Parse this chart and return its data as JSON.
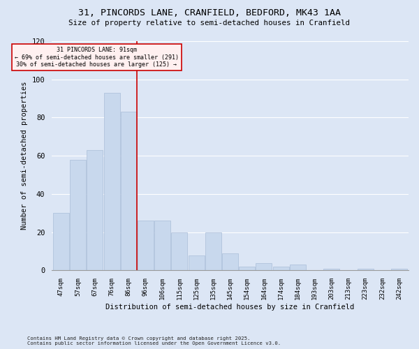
{
  "title_line1": "31, PINCORDS LANE, CRANFIELD, BEDFORD, MK43 1AA",
  "title_line2": "Size of property relative to semi-detached houses in Cranfield",
  "xlabel": "Distribution of semi-detached houses by size in Cranfield",
  "ylabel": "Number of semi-detached properties",
  "footnote1": "Contains HM Land Registry data © Crown copyright and database right 2025.",
  "footnote2": "Contains public sector information licensed under the Open Government Licence v3.0.",
  "categories": [
    "47sqm",
    "57sqm",
    "67sqm",
    "76sqm",
    "86sqm",
    "96sqm",
    "106sqm",
    "115sqm",
    "125sqm",
    "135sqm",
    "145sqm",
    "154sqm",
    "164sqm",
    "174sqm",
    "184sqm",
    "193sqm",
    "203sqm",
    "213sqm",
    "223sqm",
    "232sqm",
    "242sqm"
  ],
  "values": [
    30,
    58,
    63,
    93,
    83,
    26,
    26,
    20,
    8,
    20,
    9,
    2,
    4,
    2,
    3,
    0,
    1,
    0,
    1,
    0,
    1
  ],
  "bar_color": "#c8d8ed",
  "bar_edge_color": "#aabdd8",
  "red_line_color": "#cc0000",
  "annotation_text_line1": "31 PINCORDS LANE: 91sqm",
  "annotation_text_line2": "← 69% of semi-detached houses are smaller (291)",
  "annotation_text_line3": "30% of semi-detached houses are larger (125) →",
  "annotation_box_facecolor": "#fff0f0",
  "annotation_box_edgecolor": "#cc0000",
  "ylim_max": 120,
  "yticks": [
    0,
    20,
    40,
    60,
    80,
    100,
    120
  ],
  "bg_color": "#dce6f5",
  "grid_color": "#ffffff",
  "red_line_x": 4.5
}
